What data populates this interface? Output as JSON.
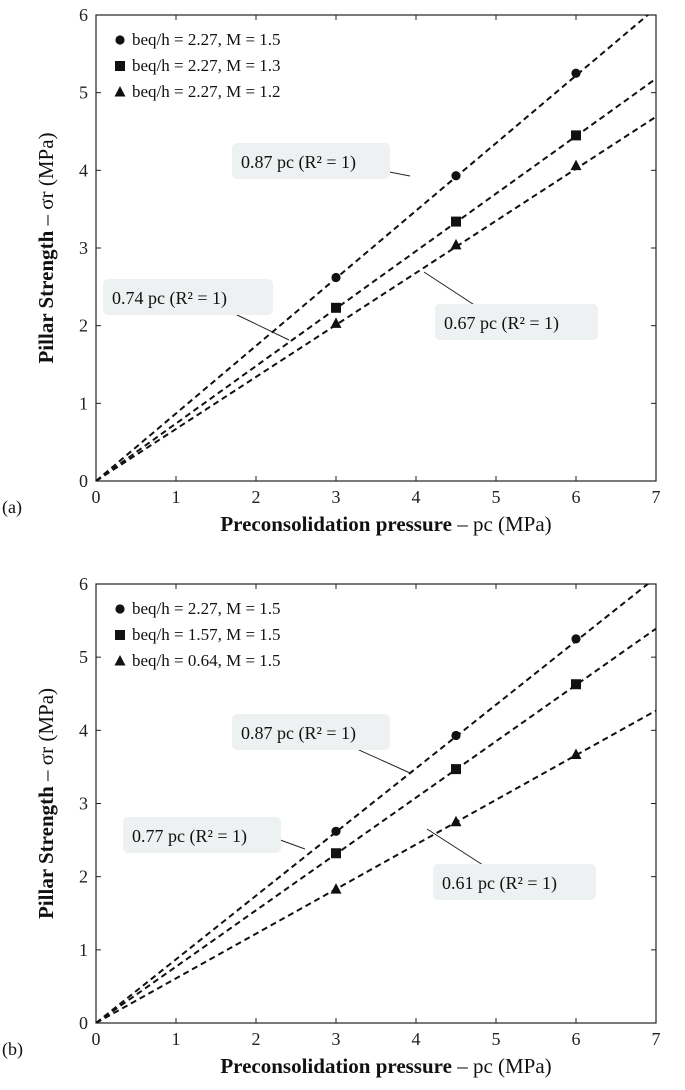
{
  "chart_data": [
    {
      "type": "scatter",
      "panel_label": "(a)",
      "xlabel_bold": "Preconsolidation pressure",
      "xlabel_rest": " – pc (MPa)",
      "ylabel_bold": "Pillar Strength",
      "ylabel_rest": " – σr (MPa)",
      "xlim": [
        0,
        7
      ],
      "ylim": [
        0,
        6
      ],
      "xticks": [
        "0",
        "1",
        "2",
        "3",
        "4",
        "5",
        "6",
        "7"
      ],
      "yticks": [
        "0",
        "1",
        "2",
        "3",
        "4",
        "5",
        "6"
      ],
      "legend_position": "top-left",
      "series": [
        {
          "name": "beq/h = 2.27, M = 1.5",
          "marker": "circle",
          "x": [
            3,
            4.5,
            6
          ],
          "y": [
            2.62,
            3.93,
            5.25
          ],
          "slope": 0.87
        },
        {
          "name": "beq/h = 2.27, M = 1.3",
          "marker": "square",
          "x": [
            3,
            4.5,
            6
          ],
          "y": [
            2.23,
            3.34,
            4.45
          ],
          "slope": 0.74
        },
        {
          "name": "beq/h = 2.27, M = 1.2",
          "marker": "triangle",
          "x": [
            3,
            4.5,
            6
          ],
          "y": [
            2.03,
            3.04,
            4.06
          ],
          "slope": 0.67
        }
      ],
      "annotations": [
        {
          "coef": "0.87",
          "text": "0.87 pc (R² = 1)"
        },
        {
          "coef": "0.74",
          "text": "0.74 pc (R² = 1)"
        },
        {
          "coef": "0.67",
          "text": "0.67 pc (R² = 1)"
        }
      ]
    },
    {
      "type": "scatter",
      "panel_label": "(b)",
      "xlabel_bold": "Preconsolidation pressure",
      "xlabel_rest": " – pc (MPa)",
      "ylabel_bold": "Pillar Strength",
      "ylabel_rest": " – σr (MPa)",
      "xlim": [
        0,
        7
      ],
      "ylim": [
        0,
        6
      ],
      "xticks": [
        "0",
        "1",
        "2",
        "3",
        "4",
        "5",
        "6",
        "7"
      ],
      "yticks": [
        "0",
        "1",
        "2",
        "3",
        "4",
        "5",
        "6"
      ],
      "legend_position": "top-left",
      "series": [
        {
          "name": "beq/h = 2.27, M = 1.5",
          "marker": "circle",
          "x": [
            3,
            4.5,
            6
          ],
          "y": [
            2.62,
            3.93,
            5.25
          ],
          "slope": 0.87
        },
        {
          "name": "beq/h = 1.57, M = 1.5",
          "marker": "square",
          "x": [
            3,
            4.5,
            6
          ],
          "y": [
            2.32,
            3.47,
            4.63
          ],
          "slope": 0.77
        },
        {
          "name": "beq/h = 0.64, M = 1.5",
          "marker": "triangle",
          "x": [
            3,
            4.5,
            6
          ],
          "y": [
            1.83,
            2.75,
            3.67
          ],
          "slope": 0.61
        }
      ],
      "annotations": [
        {
          "coef": "0.87",
          "text": "0.87 pc (R² = 1)"
        },
        {
          "coef": "0.77",
          "text": "0.77 pc (R² = 1)"
        },
        {
          "coef": "0.61",
          "text": "0.61 pc (R² = 1)"
        }
      ]
    }
  ]
}
